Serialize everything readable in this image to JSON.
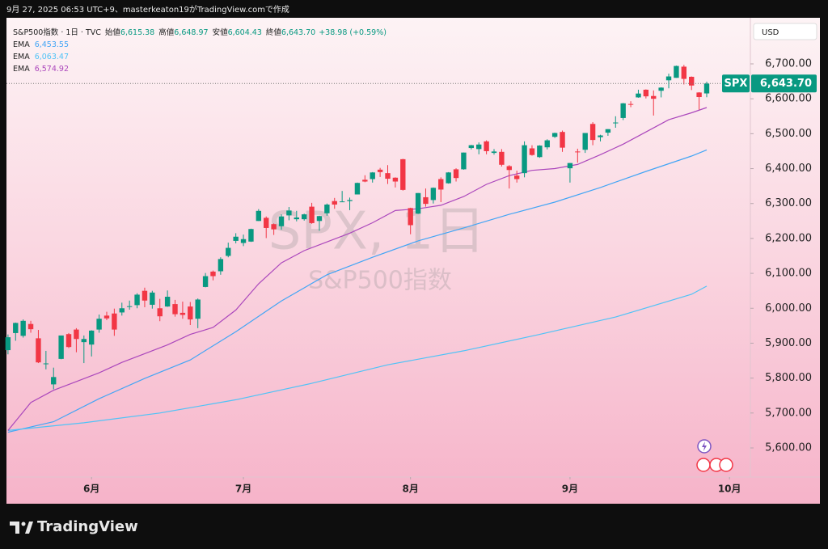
{
  "caption": "9月 27, 2025 06:53 UTC+9、masterkeaton19がTradingView.comで作成",
  "brand": "TradingView",
  "chart_data": {
    "type": "candlestick",
    "title": "S&P500指数 · 1日 · TVC",
    "ohlc_names": {
      "open": "始値",
      "high": "高値",
      "low": "安値",
      "close": "終値"
    },
    "last_value_labels": {
      "open": "6,615.38",
      "high": "6,648.97",
      "low": "6,604.43",
      "close": "6,643.70"
    },
    "change": 38.98,
    "change_label": "+38.98",
    "change_pct": 0.59,
    "change_pct_label": "(+0.59%)",
    "watermark": "SPX, 1日",
    "watermark_sub": "S&P500指数",
    "currency": "USD",
    "price_tag": "SPX",
    "up_color": "#089981",
    "down_color": "#f23645",
    "open": [
      5880,
      5929,
      5921,
      5955,
      5914,
      5842,
      5782,
      5855,
      5926,
      5939,
      5903,
      5896,
      5939,
      5979,
      5985,
      5988,
      6005,
      6009,
      6050,
      6010,
      6000,
      6005,
      6012,
      5987,
      6005,
      5970,
      6061,
      6105,
      6106,
      6150,
      6193,
      6187,
      6191,
      6250,
      6259,
      6241,
      6235,
      6266,
      6255,
      6255,
      6291,
      6250,
      6272,
      6307,
      6304,
      6307,
      6326,
      6368,
      6370,
      6397,
      6387,
      6374,
      6427,
      6287,
      6271,
      6318,
      6310,
      6370,
      6358,
      6398,
      6398,
      6459,
      6456,
      6478,
      6445,
      6448,
      6407,
      6380,
      6387,
      6458,
      6433,
      6461,
      6491,
      6505,
      6401,
      6449,
      6454,
      6528,
      6490,
      6503,
      6531,
      6545,
      6585,
      6604,
      6626,
      6608,
      6623,
      6653,
      6660,
      6692,
      6663,
      6618,
      6615.38
    ],
    "high": [
      5925,
      5959,
      5968,
      5964,
      5938,
      5878,
      5830,
      5922,
      5929,
      5943,
      5922,
      5937,
      5982,
      5990,
      5999,
      6016,
      6022,
      6043,
      6059,
      6050,
      6027,
      6051,
      6024,
      6019,
      6018,
      6028,
      6101,
      6108,
      6146,
      6188,
      6215,
      6211,
      6228,
      6284,
      6263,
      6243,
      6269,
      6290,
      6279,
      6271,
      6302,
      6265,
      6300,
      6316,
      6336,
      6317,
      6360,
      6381,
      6390,
      6402,
      6410,
      6375,
      6428,
      6288,
      6330,
      6343,
      6346,
      6375,
      6390,
      6401,
      6446,
      6468,
      6475,
      6481,
      6456,
      6456,
      6410,
      6394,
      6478,
      6467,
      6467,
      6484,
      6503,
      6509,
      6416,
      6457,
      6502,
      6533,
      6497,
      6513,
      6550,
      6588,
      6593,
      6626,
      6627,
      6624,
      6633,
      6672,
      6695,
      6697,
      6664,
      6619,
      6648.97
    ],
    "low": [
      5868,
      5907,
      5916,
      5930,
      5843,
      5825,
      5768,
      5854,
      5886,
      5874,
      5843,
      5862,
      5930,
      5966,
      5921,
      5979,
      5996,
      6000,
      6003,
      5999,
      5963,
      6004,
      5976,
      5970,
      5952,
      5943,
      6060,
      6080,
      6096,
      6146,
      6186,
      6178,
      6190,
      6250,
      6201,
      6210,
      6225,
      6252,
      6249,
      6251,
      6242,
      6222,
      6265,
      6285,
      6304,
      6281,
      6326,
      6361,
      6360,
      6376,
      6356,
      6346,
      6337,
      6212,
      6270,
      6291,
      6300,
      6304,
      6357,
      6363,
      6397,
      6455,
      6441,
      6441,
      6440,
      6406,
      6343,
      6360,
      6375,
      6437,
      6431,
      6455,
      6488,
      6448,
      6360,
      6417,
      6445,
      6467,
      6478,
      6494,
      6517,
      6539,
      6576,
      6603,
      6601,
      6552,
      6604,
      6630,
      6660,
      6641,
      6625,
      6569,
      6604.43
    ],
    "close": [
      5917,
      5958,
      5964,
      5940,
      5845,
      5842,
      5803,
      5922,
      5889,
      5912,
      5912,
      5936,
      5970,
      5971,
      5939,
      6000,
      6006,
      6039,
      6022,
      6045,
      5977,
      6033,
      5983,
      5981,
      5968,
      6025,
      6092,
      6092,
      6141,
      6173,
      6205,
      6198,
      6227,
      6279,
      6230,
      6226,
      6263,
      6280,
      6260,
      6269,
      6244,
      6264,
      6297,
      6297,
      6306,
      6310,
      6359,
      6363,
      6389,
      6390,
      6371,
      6363,
      6339,
      6238,
      6330,
      6299,
      6345,
      6340,
      6389,
      6373,
      6446,
      6467,
      6469,
      6450,
      6449,
      6411,
      6396,
      6370,
      6467,
      6439,
      6466,
      6481,
      6502,
      6460,
      6416,
      6448,
      6502,
      6482,
      6495,
      6513,
      6532,
      6587,
      6584,
      6615,
      6607,
      6600,
      6632,
      6664,
      6694,
      6657,
      6638,
      6605,
      6643.7
    ],
    "overlays": [
      {
        "name": "EMA",
        "color": "#42a5f5",
        "value_label": "6,453.55",
        "x": [
          0,
          6,
          12,
          18,
          24,
          30,
          36,
          42,
          48,
          54,
          60,
          66,
          72,
          78,
          84,
          90,
          92
        ],
        "values": [
          5645,
          5675,
          5741,
          5799,
          5852,
          5933,
          6021,
          6096,
          6146,
          6193,
          6230,
          6269,
          6304,
          6346,
          6392,
          6436,
          6453.55
        ]
      },
      {
        "name": "EMA",
        "color": "#4fc3f7",
        "value_label": "6,063.47",
        "x": [
          0,
          10,
          20,
          30,
          40,
          50,
          60,
          70,
          80,
          90,
          92
        ],
        "values": [
          5650,
          5672,
          5700,
          5738,
          5785,
          5838,
          5878,
          5925,
          5975,
          6040,
          6063.47
        ]
      },
      {
        "name": "EMA",
        "color": "#ab47bc",
        "value_label": "6,574.92",
        "x": [
          0,
          3,
          6,
          9,
          12,
          15,
          18,
          21,
          24,
          27,
          30,
          33,
          36,
          39,
          42,
          45,
          48,
          51,
          54,
          57,
          60,
          63,
          66,
          69,
          72,
          75,
          78,
          81,
          84,
          87,
          90,
          92
        ],
        "values": [
          5650,
          5730,
          5765,
          5790,
          5815,
          5845,
          5870,
          5895,
          5925,
          5945,
          5995,
          6070,
          6130,
          6165,
          6190,
          6215,
          6245,
          6280,
          6285,
          6295,
          6320,
          6355,
          6380,
          6395,
          6400,
          6412,
          6440,
          6470,
          6505,
          6540,
          6560,
          6574.92
        ]
      }
    ],
    "ylim": [
      5516.6,
      6818.1
    ],
    "yticks": [
      {
        "value": 5600,
        "label": "5,600.00"
      },
      {
        "value": 5700,
        "label": "5,700.00"
      },
      {
        "value": 5800,
        "label": "5,800.00"
      },
      {
        "value": 5900,
        "label": "5,900.00"
      },
      {
        "value": 6000,
        "label": "6,000.00"
      },
      {
        "value": 6100,
        "label": "6,100.00"
      },
      {
        "value": 6200,
        "label": "6,200.00"
      },
      {
        "value": 6300,
        "label": "6,300.00"
      },
      {
        "value": 6400,
        "label": "6,400.00"
      },
      {
        "value": 6500,
        "label": "6,500.00"
      },
      {
        "value": 6600,
        "label": "6,600.00"
      },
      {
        "value": 6700,
        "label": "6,700.00"
      }
    ],
    "xlim": [
      -0.2,
      97.75
    ],
    "xticks": [
      {
        "value": 11,
        "label": "6月"
      },
      {
        "value": 31,
        "label": "7月"
      },
      {
        "value": 53,
        "label": "8月"
      },
      {
        "value": 74,
        "label": "9月"
      },
      {
        "value": 95,
        "label": "10月"
      }
    ]
  }
}
